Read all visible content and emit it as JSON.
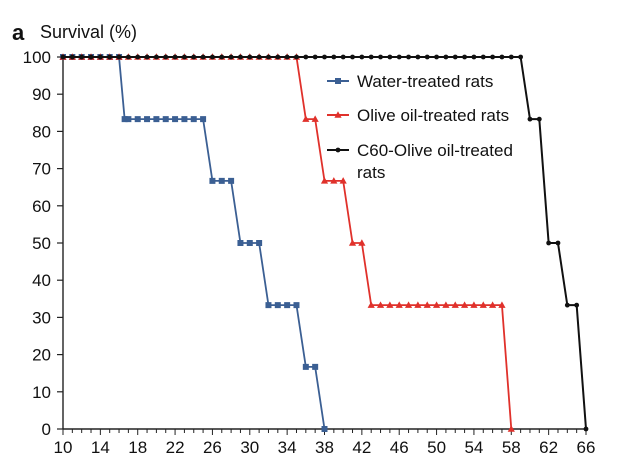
{
  "figure": {
    "panel_label": "a",
    "ylabel": "Survival (%)"
  },
  "chart_data": {
    "type": "line",
    "ylabel": "Survival (%)",
    "xlabel": "",
    "xlim": [
      10,
      66
    ],
    "ylim": [
      0,
      100
    ],
    "x_ticks": [
      "10",
      "14",
      "18",
      "22",
      "26",
      "30",
      "34",
      "38",
      "42",
      "46",
      "50",
      "54",
      "58",
      "62",
      "66"
    ],
    "y_ticks": [
      "0",
      "10",
      "20",
      "30",
      "40",
      "50",
      "60",
      "70",
      "80",
      "90",
      "100"
    ],
    "grid": false,
    "legend_position": "top-right",
    "series": [
      {
        "name": "Water-treated rats",
        "color": "#3b5f93",
        "marker": "square",
        "x": [
          10,
          11,
          12,
          13,
          14,
          15,
          16,
          16.6,
          17,
          18,
          19,
          20,
          21,
          22,
          23,
          24,
          25,
          26,
          27,
          28,
          29,
          30,
          31,
          32,
          33,
          34,
          35,
          36,
          37,
          38
        ],
        "y": [
          100,
          100,
          100,
          100,
          100,
          100,
          100,
          83.3,
          83.3,
          83.3,
          83.3,
          83.3,
          83.3,
          83.3,
          83.3,
          83.3,
          83.3,
          66.7,
          66.7,
          66.7,
          50,
          50,
          50,
          33.3,
          33.3,
          33.3,
          33.3,
          16.7,
          16.7,
          0
        ]
      },
      {
        "name": "Olive oil-treated rats",
        "color": "#e0312b",
        "marker": "triangle",
        "x": [
          10,
          11,
          12,
          13,
          14,
          15,
          16,
          17,
          18,
          19,
          20,
          21,
          22,
          23,
          24,
          25,
          26,
          27,
          28,
          29,
          30,
          31,
          32,
          33,
          34,
          35,
          36,
          37,
          38,
          39,
          40,
          41,
          42,
          43,
          44,
          45,
          46,
          47,
          48,
          49,
          50,
          51,
          52,
          53,
          54,
          55,
          56,
          57,
          58
        ],
        "y": [
          100,
          100,
          100,
          100,
          100,
          100,
          100,
          100,
          100,
          100,
          100,
          100,
          100,
          100,
          100,
          100,
          100,
          100,
          100,
          100,
          100,
          100,
          100,
          100,
          100,
          100,
          83.3,
          83.3,
          66.7,
          66.7,
          66.7,
          50,
          50,
          33.3,
          33.3,
          33.3,
          33.3,
          33.3,
          33.3,
          33.3,
          33.3,
          33.3,
          33.3,
          33.3,
          33.3,
          33.3,
          33.3,
          33.3,
          0
        ]
      },
      {
        "name": "C60-Olive oil-treated rats",
        "name_lines": [
          "C60-Olive oil-treated",
          "rats"
        ],
        "color": "#111111",
        "marker": "circle",
        "x": [
          10,
          11,
          12,
          13,
          14,
          15,
          16,
          17,
          18,
          19,
          20,
          21,
          22,
          23,
          24,
          25,
          26,
          27,
          28,
          29,
          30,
          31,
          32,
          33,
          34,
          35,
          36,
          37,
          38,
          39,
          40,
          41,
          42,
          43,
          44,
          45,
          46,
          47,
          48,
          49,
          50,
          51,
          52,
          53,
          54,
          55,
          56,
          57,
          58,
          59,
          60,
          61,
          62,
          63,
          64,
          65,
          66
        ],
        "y": [
          100,
          100,
          100,
          100,
          100,
          100,
          100,
          100,
          100,
          100,
          100,
          100,
          100,
          100,
          100,
          100,
          100,
          100,
          100,
          100,
          100,
          100,
          100,
          100,
          100,
          100,
          100,
          100,
          100,
          100,
          100,
          100,
          100,
          100,
          100,
          100,
          100,
          100,
          100,
          100,
          100,
          100,
          100,
          100,
          100,
          100,
          100,
          100,
          100,
          100,
          83.3,
          83.3,
          50,
          50,
          33.3,
          33.3,
          0
        ]
      }
    ]
  }
}
